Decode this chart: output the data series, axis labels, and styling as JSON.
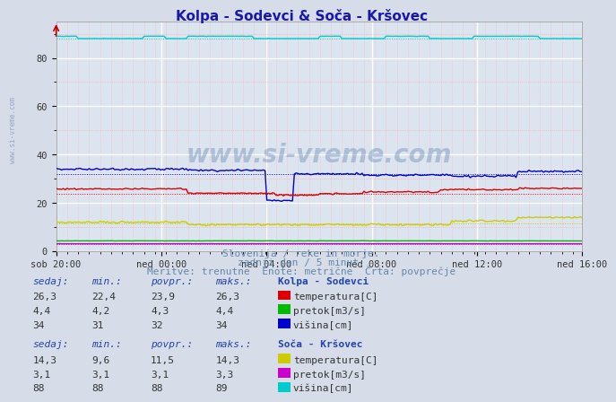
{
  "title": "Kolpa - Sodevci & Soča - Kršovec",
  "title_color": "#1a1aaa",
  "bg_color": "#d6dce8",
  "plot_bg_color": "#dce4f0",
  "ylim": [
    0,
    95
  ],
  "xtick_labels": [
    "sob 20:00",
    "ned 00:00",
    "ned 04:00",
    "ned 08:00",
    "ned 12:00",
    "ned 16:00"
  ],
  "n_points": 288,
  "watermark": "www.si-vreme.com",
  "subtitle1": "Slovenija / reke in morje.",
  "subtitle2": "zadnji dan / 5 minut.",
  "subtitle3": "Meritve: trenutne  Enote: metrične  Črta: povprečje",
  "subtitle_color": "#6688aa",
  "kolpa_temp_color": "#dd0000",
  "kolpa_temp_avg": 23.9,
  "kolpa_temp_min": 22.4,
  "kolpa_temp_max": 26.3,
  "kolpa_temp_sedaj": 26.3,
  "kolpa_pretok_color": "#00bb00",
  "kolpa_pretok_avg": 4.3,
  "kolpa_pretok_min": 4.2,
  "kolpa_pretok_max": 4.4,
  "kolpa_pretok_sedaj": 4.4,
  "kolpa_visina_color": "#0000cc",
  "kolpa_visina_avg": 32,
  "kolpa_visina_min": 31,
  "kolpa_visina_max": 34,
  "kolpa_visina_sedaj": 34,
  "soca_temp_color": "#cccc00",
  "soca_temp_avg": 11.5,
  "soca_temp_min": 9.6,
  "soca_temp_max": 14.3,
  "soca_temp_sedaj": 14.3,
  "soca_pretok_color": "#cc00cc",
  "soca_pretok_avg": 3.1,
  "soca_pretok_min": 3.1,
  "soca_pretok_max": 3.3,
  "soca_pretok_sedaj": 3.1,
  "soca_visina_color": "#00cccc",
  "soca_visina_avg": 88,
  "soca_visina_min": 88,
  "soca_visina_max": 89,
  "soca_visina_sedaj": 88,
  "text_color": "#2244aa",
  "header_color": "#2244aa"
}
